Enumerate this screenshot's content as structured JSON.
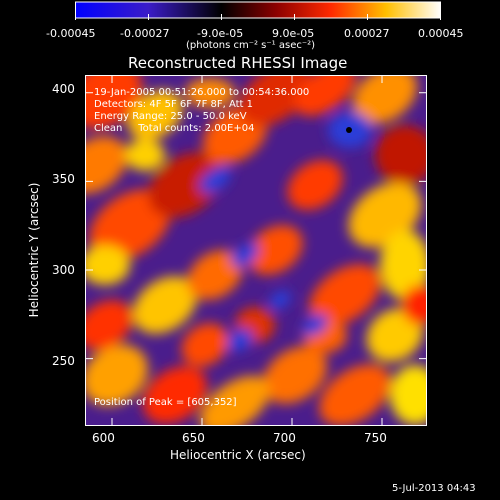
{
  "colorbar": {
    "tick_labels": [
      "-0.00045",
      "-0.00027",
      "-9.0e-05",
      "9.0e-05",
      "0.00027",
      "0.00045"
    ],
    "units": "(photons cm⁻² s⁻¹ asec⁻²)"
  },
  "plot": {
    "title": "Reconstructed RHESSI Image",
    "xlabel": "Heliocentric X (arcsec)",
    "ylabel": "Heliocentric Y (arcsec)",
    "x_ticks": [
      "600",
      "650",
      "700",
      "750"
    ],
    "y_ticks": [
      "400",
      "350",
      "300",
      "250"
    ],
    "annotations": {
      "line1": "19-Jan-2005 00:51:26.000 to 00:54:36.000",
      "line2": "Detectors: 4F 5F 6F 7F 8F, Att 1",
      "line3": "Energy Range: 25.0 - 50.0 keV",
      "line4": "Clean     Total counts: 2.00E+04",
      "peak": "Position of Peak = [605,352]"
    },
    "timestamp": "5-Jul-2013 04:43"
  },
  "chart_data": {
    "type": "heatmap",
    "title": "Reconstructed RHESSI Image",
    "xlabel": "Heliocentric X (arcsec)",
    "ylabel": "Heliocentric Y (arcsec)",
    "xlim": [
      585,
      775
    ],
    "ylim": [
      212,
      410
    ],
    "x_ticks": [
      600,
      650,
      700,
      750
    ],
    "y_ticks": [
      250,
      300,
      350,
      400
    ],
    "color_range": [
      -0.00045,
      0.00045
    ],
    "color_ticks": [
      -0.00045,
      -0.00027,
      -9e-05,
      9e-05,
      0.00027,
      0.00045
    ],
    "colormap": [
      "#0000ff",
      "#000000",
      "#ff0000",
      "#ffff00",
      "#ffffff"
    ],
    "peak_position": [
      605,
      352
    ]
  }
}
